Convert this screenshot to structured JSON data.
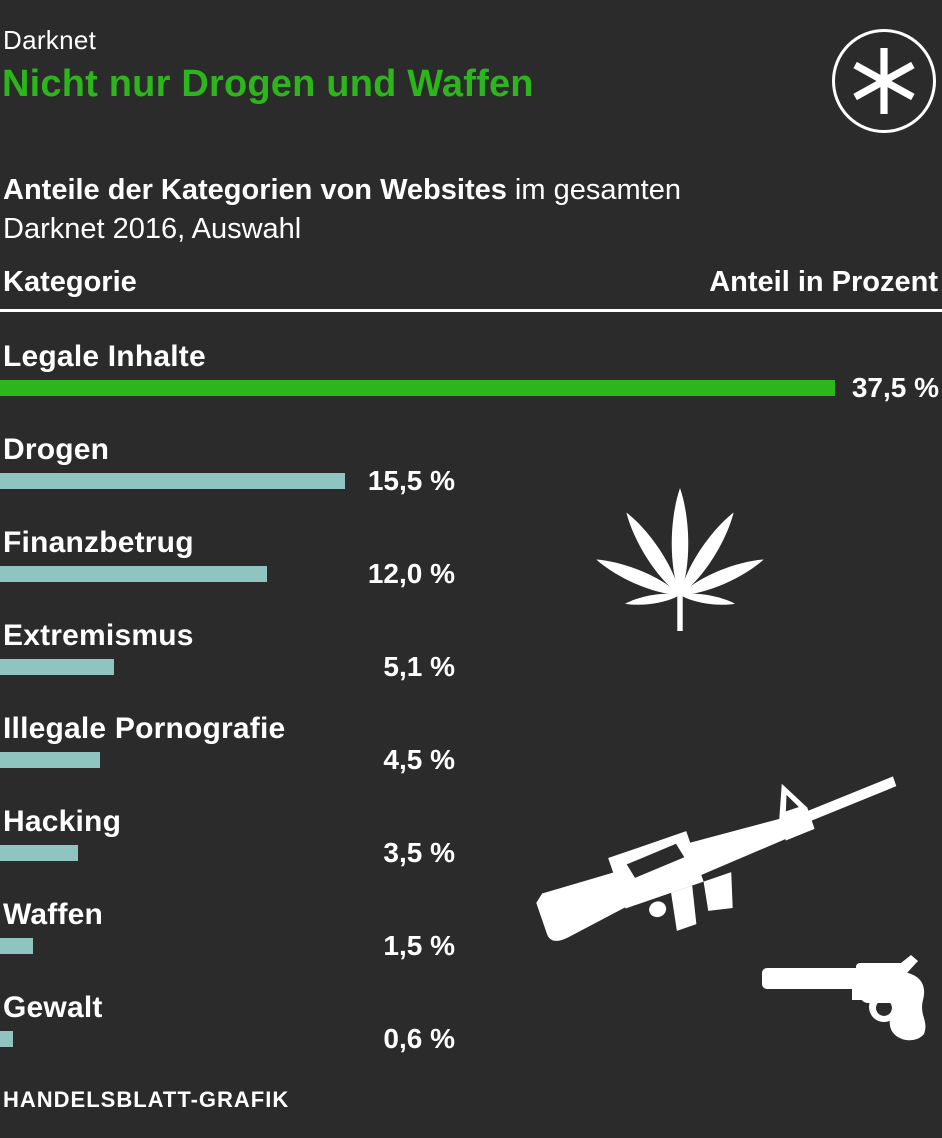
{
  "header": {
    "kicker": "Darknet",
    "title": "Nicht nur Drogen und Waffen",
    "subtitle_bold": "Anteile der Kategorien von Websites",
    "subtitle_rest": " im gesamten",
    "subtitle_line2": "Darknet 2016, Auswahl"
  },
  "table_header": {
    "category": "Kategorie",
    "value": "Anteil in Prozent"
  },
  "chart_data": {
    "type": "bar",
    "orientation": "horizontal",
    "title": "Nicht nur Drogen und Waffen",
    "subtitle": "Anteile der Kategorien von Websites im gesamten Darknet 2016, Auswahl",
    "xlabel": "Anteil in Prozent",
    "unit": "%",
    "categories": [
      "Legale Inhalte",
      "Drogen",
      "Finanzbetrug",
      "Extremismus",
      "Illegale Pornografie",
      "Hacking",
      "Waffen",
      "Gewalt"
    ],
    "values": [
      37.5,
      15.5,
      12.0,
      5.1,
      4.5,
      3.5,
      1.5,
      0.6
    ],
    "value_labels": [
      "37,5 %",
      "15,5 %",
      "12,0 %",
      "5,1 %",
      "4,5 %",
      "3,5 %",
      "1,5 %",
      "0,6 %"
    ],
    "xlim": [
      0,
      42.3
    ],
    "grid": false,
    "legend": false,
    "highlight_index": 0,
    "highlight_color": "#2db51c",
    "bar_color": "#8fc4c0"
  },
  "icons": {
    "logo": "asterisk-in-circle",
    "drugs": "cannabis-leaf",
    "rifle": "assault-rifle",
    "pistol": "revolver"
  },
  "footer": {
    "credit": "HANDELSBLATT-GRAFIK"
  },
  "colors": {
    "background": "#2b2b2b",
    "text": "#ffffff",
    "green": "#2db51c",
    "teal": "#8fc4c0"
  }
}
